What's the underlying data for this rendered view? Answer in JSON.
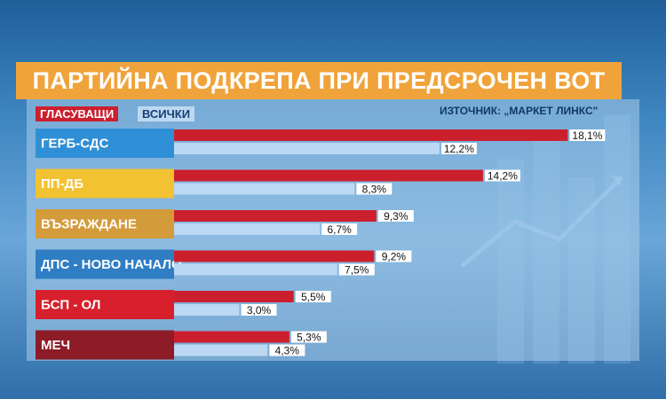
{
  "title": "ПАРТИЙНА ПОДКРЕПА ПРИ ПРЕДСРОЧЕН ВОТ",
  "legend": {
    "voters": "ГЛАСУВАЩИ",
    "all": "ВСИЧКИ"
  },
  "source": "ИЗТОЧНИК: „МАРКЕТ ЛИНКС\"",
  "colors": {
    "voters": "#cc1f2d",
    "all": "#bcd8f2",
    "title_bg": "#f0a33a"
  },
  "chart_data": {
    "type": "bar",
    "orientation": "horizontal",
    "title": "ПАРТИЙНА ПОДКРЕПА ПРИ ПРЕДСРОЧЕН ВОТ",
    "categories": [
      "ГЕРБ-СДС",
      "ПП-ДБ",
      "ВЪЗРАЖДАНЕ",
      "ДПС - НОВО НАЧАЛО",
      "БСП - ОЛ",
      "МЕЧ"
    ],
    "category_colors": [
      "#2f8fd6",
      "#f2c232",
      "#d49b3a",
      "#2f7ec4",
      "#d81f2c",
      "#8e1c28"
    ],
    "series": [
      {
        "name": "ГЛАСУВАЩИ",
        "values": [
          18.1,
          14.2,
          9.3,
          9.2,
          5.5,
          5.3
        ],
        "labels": [
          "18,1%",
          "14,2%",
          "9,3%",
          "9,2%",
          "5,5%",
          "5,3%"
        ]
      },
      {
        "name": "ВСИЧКИ",
        "values": [
          12.2,
          8.3,
          6.7,
          7.5,
          3.0,
          4.3
        ],
        "labels": [
          "12,2%",
          "8,3%",
          "6,7%",
          "7,5%",
          "3,0%",
          "4,3%"
        ]
      }
    ],
    "xlim": [
      0,
      20
    ],
    "grid": false,
    "legend_position": "top-left"
  }
}
